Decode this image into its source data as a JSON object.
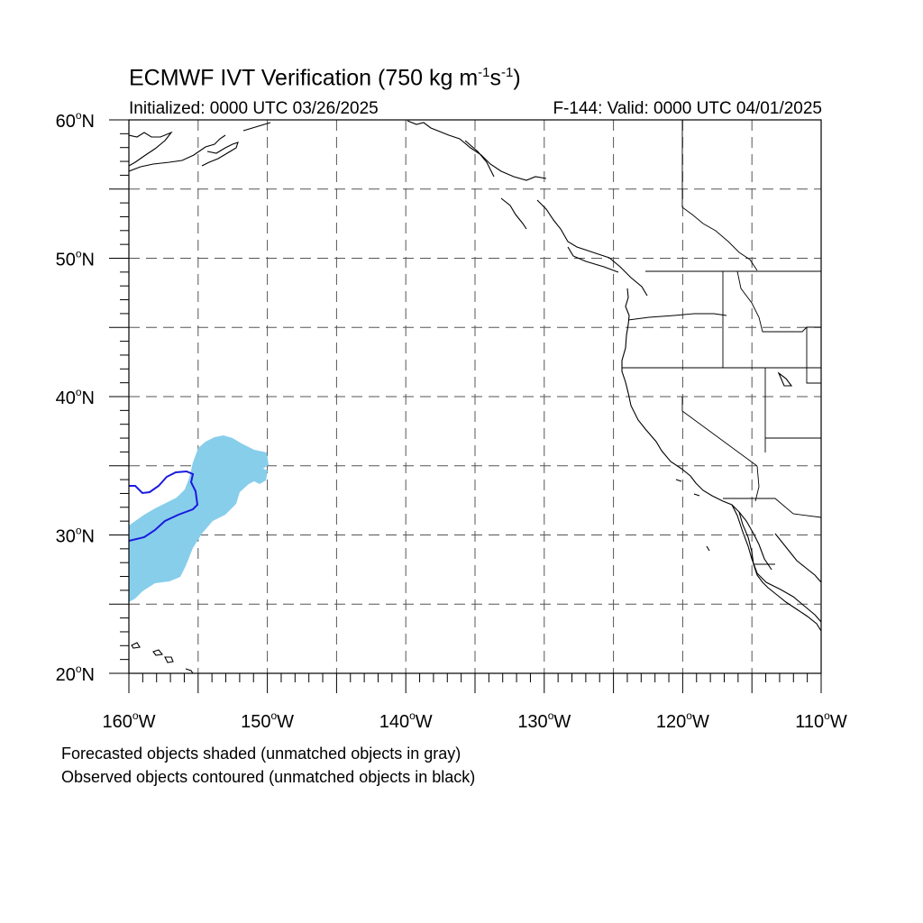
{
  "title": {
    "text": "ECMWF IVT Verification (750 kg m",
    "exp1": "-1",
    "mid": "s",
    "exp2": "-1",
    "close": ")"
  },
  "subtitle": {
    "initialized": "Initialized: 0000 UTC 03/26/2025",
    "valid": "F-144: Valid: 0000 UTC 04/01/2025"
  },
  "map": {
    "lon_range": [
      -160,
      -110
    ],
    "lat_range": [
      20,
      60
    ],
    "grid_lon_step": 5,
    "grid_lat_step": 5,
    "grid": "dashed",
    "lat_labels": [
      {
        "value": 60,
        "num": "60",
        "deg": "o",
        "hem": "N"
      },
      {
        "value": 50,
        "num": "50",
        "deg": "o",
        "hem": "N"
      },
      {
        "value": 40,
        "num": "40",
        "deg": "o",
        "hem": "N"
      },
      {
        "value": 30,
        "num": "30",
        "deg": "o",
        "hem": "N"
      },
      {
        "value": 20,
        "num": "20",
        "deg": "o",
        "hem": "N"
      }
    ],
    "lon_labels": [
      {
        "value": -160,
        "num": "160",
        "deg": "o",
        "hem": "W"
      },
      {
        "value": -150,
        "num": "150",
        "deg": "o",
        "hem": "W"
      },
      {
        "value": -140,
        "num": "140",
        "deg": "o",
        "hem": "W"
      },
      {
        "value": -130,
        "num": "130",
        "deg": "o",
        "hem": "W"
      },
      {
        "value": -120,
        "num": "120",
        "deg": "o",
        "hem": "W"
      },
      {
        "value": -110,
        "num": "110",
        "deg": "o",
        "hem": "W"
      }
    ],
    "forecast_object_color": "#87ceeb",
    "observed_object_color": "#1a1adf",
    "coastline_color": "#000000"
  },
  "legend": {
    "forecast": "Forecasted objects shaded (unmatched objects in gray)",
    "observed": "Observed objects contoured (unmatched objects in black)"
  }
}
